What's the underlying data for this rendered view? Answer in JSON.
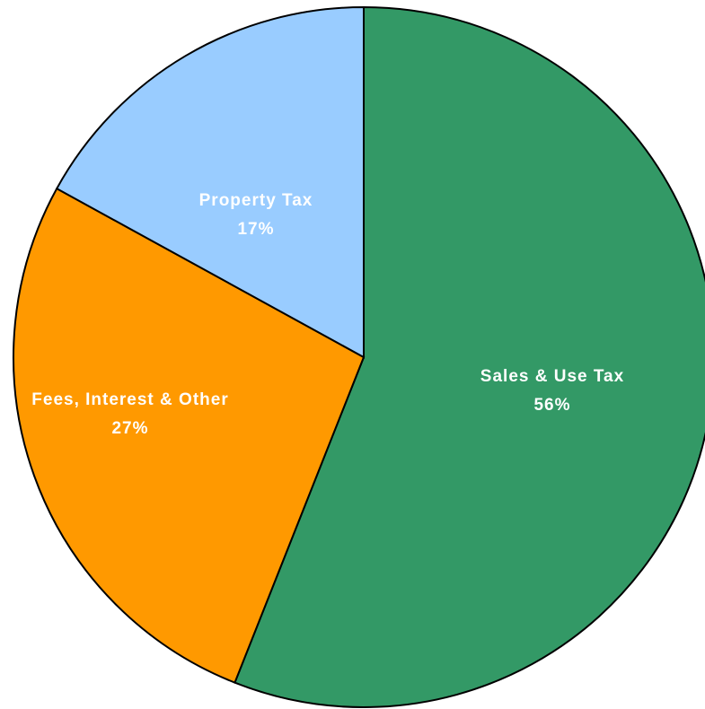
{
  "chart_data": {
    "type": "pie",
    "categories": [
      "Sales & Use Tax",
      "Fees, Interest & Other",
      "Property Tax"
    ],
    "values": [
      56,
      27,
      17
    ],
    "value_labels": [
      "56%",
      "27%",
      "17%"
    ],
    "colors": [
      "#339966",
      "#ff9900",
      "#99ccff"
    ]
  }
}
